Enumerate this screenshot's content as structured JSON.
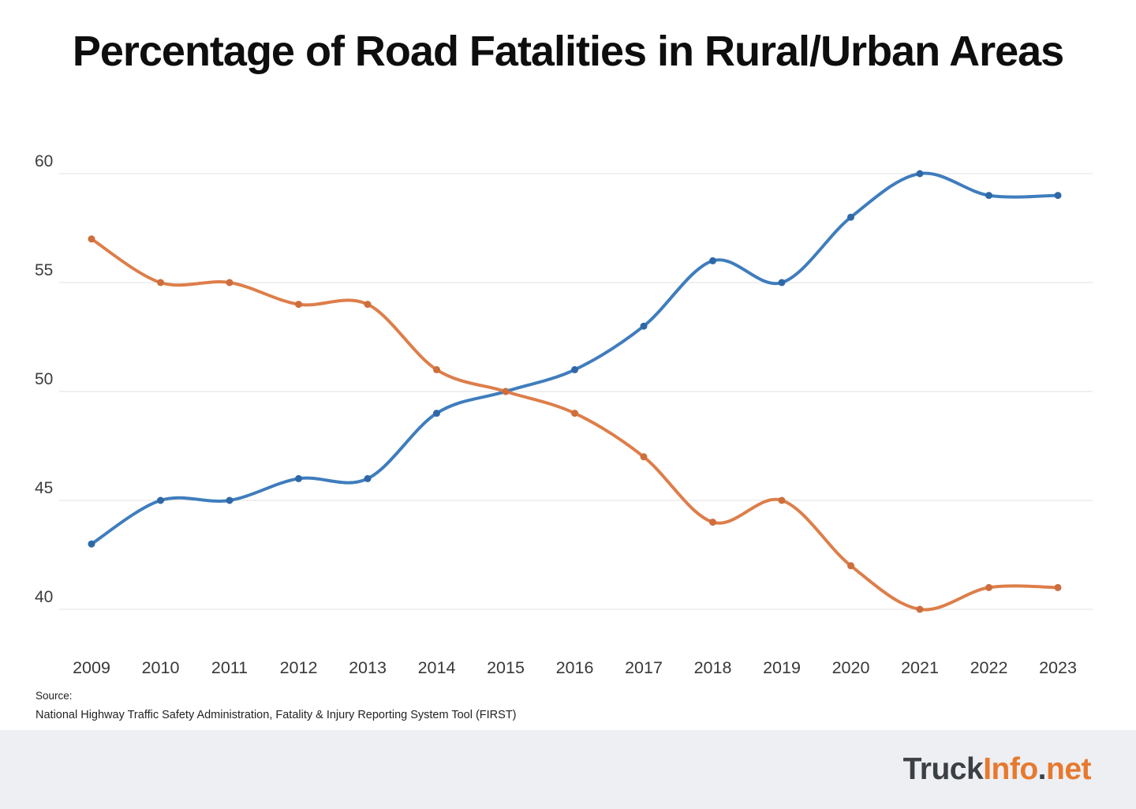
{
  "page": {
    "title": "Percentage of Road Fatalities in Rural/Urban Areas",
    "source": {
      "label": "Source:",
      "text": "National Highway Traffic Safety Administration, Fatality & Injury Reporting System Tool (FIRST)"
    },
    "footer": {
      "logo_part_truck": "Truck",
      "logo_part_info": "Info",
      "logo_part_dot": ".",
      "logo_part_net": "net",
      "logo_dark_color": "#3b4045",
      "logo_accent_color": "#e7792e"
    }
  },
  "chart_data": {
    "type": "line",
    "title": "Percentage of Road Fatalities in Rural/Urban Areas",
    "x": [
      2009,
      2010,
      2011,
      2012,
      2013,
      2014,
      2015,
      2016,
      2017,
      2018,
      2019,
      2020,
      2021,
      2022,
      2023
    ],
    "xlabel": "",
    "ylabel": "",
    "y_ticks": [
      60,
      55,
      50,
      45,
      40
    ],
    "ylim": [
      38,
      62
    ],
    "grid": "horizontal",
    "legend_position": "none",
    "gridline_color": "#e2e2e2",
    "series": [
      {
        "name": "blue-line",
        "color": "#3f7dbd",
        "marker_color": "#2f68a7",
        "values": [
          43,
          45,
          45,
          46,
          46,
          49,
          50,
          51,
          53,
          56,
          55,
          58,
          60,
          59,
          59
        ]
      },
      {
        "name": "orange-line",
        "color": "#dd7e4a",
        "marker_color": "#cd6e3c",
        "values": [
          57,
          55,
          55,
          54,
          54,
          51,
          50,
          49,
          47,
          44,
          45,
          42,
          40,
          41,
          41
        ]
      }
    ]
  }
}
